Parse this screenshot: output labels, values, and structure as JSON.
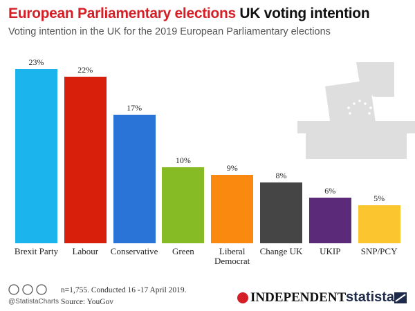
{
  "chart_data": {
    "type": "bar",
    "title_highlight": "European Parliamentary elections",
    "title": "UK voting intention",
    "subtitle": "Voting intention in the UK for the 2019 European Parliamentary elections",
    "categories": [
      "Brexit Party",
      "Labour",
      "Conservative",
      "Green",
      "Liberal Democrat",
      "Change UK",
      "UKIP",
      "SNP/PCY"
    ],
    "values": [
      23,
      22,
      17,
      10,
      9,
      8,
      6,
      5
    ],
    "value_labels": [
      "23%",
      "22%",
      "17%",
      "10%",
      "9%",
      "8%",
      "6%",
      "5%"
    ],
    "colors": [
      "#1cb4ec",
      "#d71f0c",
      "#2a74d8",
      "#86bb26",
      "#fa8a0f",
      "#454545",
      "#5b2a79",
      "#fbc52f"
    ],
    "note": "n=1,755. Conducted 16 -17 April 2019.",
    "source": "Source: YouGov",
    "handle": "@StatistaCharts",
    "publisher": "INDEPENDENT",
    "brand": "statista"
  }
}
